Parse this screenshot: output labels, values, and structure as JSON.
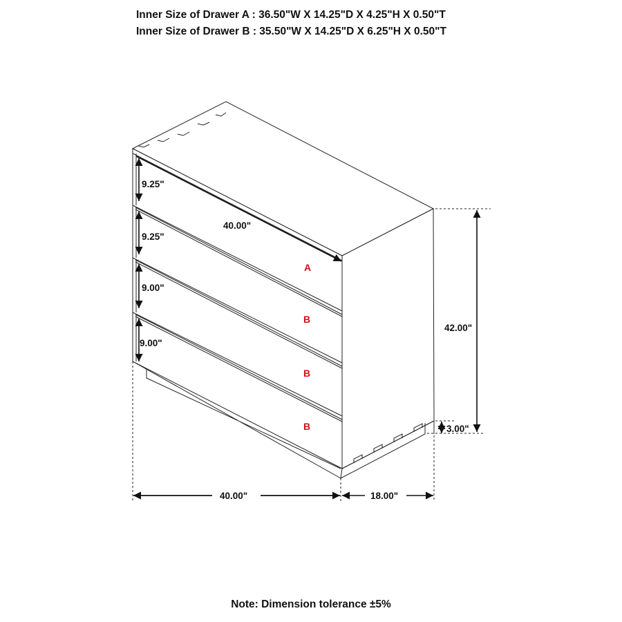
{
  "header": {
    "drawer_a": "Inner Size of Drawer A : 36.50\"W X 14.25\"D X 4.25\"H X 0.50\"T",
    "drawer_b": "Inner Size of Drawer B : 35.50\"W X 14.25\"D X 6.25\"H X 0.50\"T"
  },
  "dimensions": {
    "drawer_1_height": "9.25\"",
    "drawer_2_height": "9.25\"",
    "drawer_3_height": "9.00\"",
    "drawer_4_height": "9.00\"",
    "top_width": "40.00\"",
    "overall_height": "42.00\"",
    "base_height": "3.00\"",
    "overall_width": "40.00\"",
    "overall_depth": "18.00\""
  },
  "drawer_labels": [
    "A",
    "B",
    "B",
    "B"
  ],
  "colors": {
    "line": "#111111",
    "drawer_label": "#d0101a"
  },
  "note": "Note: Dimension tolerance ±5%"
}
